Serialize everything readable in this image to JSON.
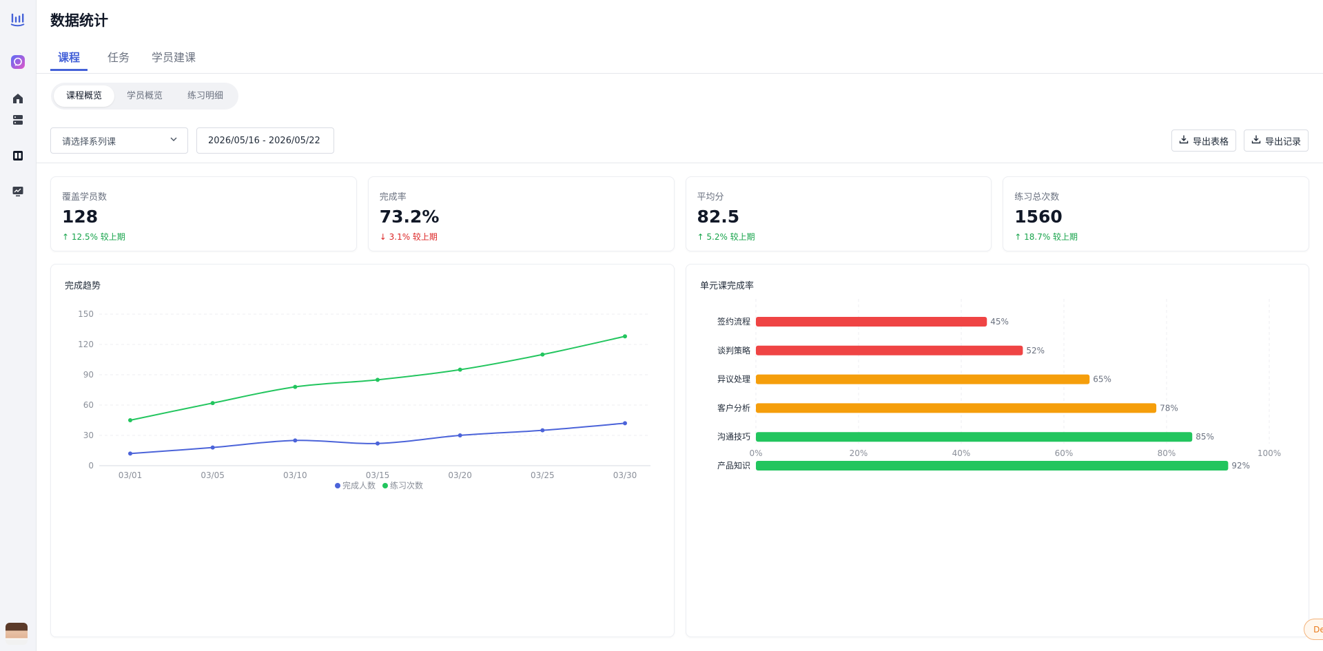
{
  "page": {
    "title": "数据统计"
  },
  "colors": {
    "accent": "#4461d8",
    "blue_series": "#4b63d9",
    "green_series": "#22c55e",
    "red_bar": "#ef4444",
    "orange_bar": "#f59e0b",
    "green_bar": "#22c55e",
    "up": "#16a34a",
    "down": "#dc2626"
  },
  "sidebar": {
    "icons": [
      "logo-bars-icon",
      "chat-bubble-icon",
      "home-icon",
      "server-icon",
      "book-icon",
      "monitor-chart-icon"
    ]
  },
  "tabs": [
    {
      "label": "课程",
      "active": true
    },
    {
      "label": "任务",
      "active": false
    },
    {
      "label": "学员建课",
      "active": false
    }
  ],
  "subtabs": [
    {
      "label": "课程概览",
      "active": true
    },
    {
      "label": "学员概览",
      "active": false
    },
    {
      "label": "练习明细",
      "active": false
    }
  ],
  "filters": {
    "series_placeholder": "请选择系列课",
    "date_range": "2026/05/16 - 2026/05/22",
    "export_table": "导出表格",
    "export_records": "导出记录"
  },
  "stats": [
    {
      "label": "覆盖学员数",
      "value": "128",
      "direction": "up",
      "change": "↑ 12.5% 较上期"
    },
    {
      "label": "完成率",
      "value": "73.2%",
      "direction": "down",
      "change": "↓ 3.1% 较上期"
    },
    {
      "label": "平均分",
      "value": "82.5",
      "direction": "up",
      "change": "↑ 5.2% 较上期"
    },
    {
      "label": "练习总次数",
      "value": "1560",
      "direction": "up",
      "change": "↑ 18.7% 较上期"
    }
  ],
  "chart_data": [
    {
      "type": "line",
      "title": "完成趋势",
      "categories": [
        "03/01",
        "03/05",
        "03/10",
        "03/15",
        "03/20",
        "03/25",
        "03/30"
      ],
      "series": [
        {
          "name": "完成人数",
          "values": [
            12,
            18,
            25,
            22,
            30,
            35,
            42
          ]
        },
        {
          "name": "练习次数",
          "values": [
            45,
            62,
            78,
            85,
            95,
            110,
            128
          ]
        }
      ],
      "ylim": [
        0,
        150
      ],
      "yticks": [
        0,
        30,
        60,
        90,
        120,
        150
      ],
      "grid": true,
      "legend": "bottom"
    },
    {
      "type": "bar",
      "orientation": "horizontal",
      "title": "单元课完成率",
      "categories": [
        "签约流程",
        "谈判策略",
        "异议处理",
        "客户分析",
        "沟通技巧",
        "产品知识"
      ],
      "values": [
        45,
        52,
        65,
        78,
        85,
        92
      ],
      "value_labels": [
        "45%",
        "52%",
        "65%",
        "78%",
        "85%",
        "92%"
      ],
      "bar_colors": [
        "#ef4444",
        "#ef4444",
        "#f59e0b",
        "#f59e0b",
        "#22c55e",
        "#22c55e"
      ],
      "xlim": [
        0,
        100
      ],
      "xticks": [
        "0%",
        "20%",
        "40%",
        "60%",
        "80%",
        "100%"
      ],
      "grid": true
    }
  ],
  "demo_label": "Demo"
}
